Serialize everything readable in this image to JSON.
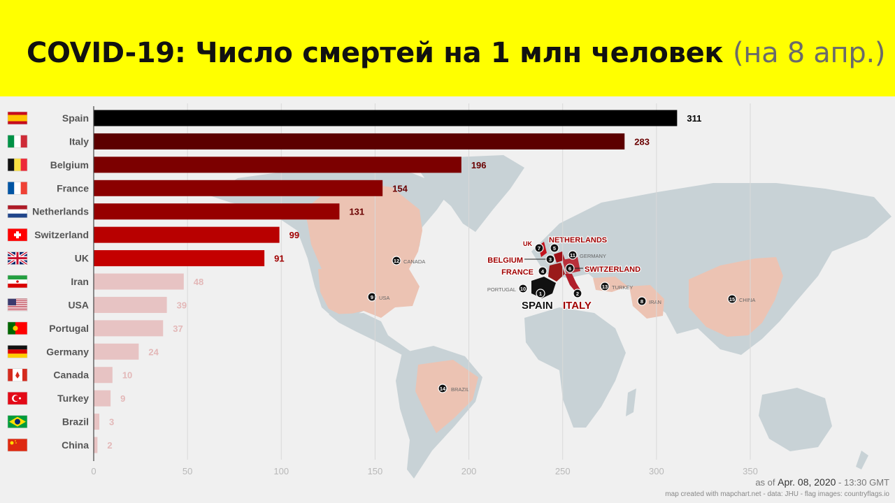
{
  "header": {
    "title": "COVID-19: Число смертей на 1 млн человек",
    "subtitle": "(на 8 апр.)"
  },
  "chart_data": {
    "type": "bar",
    "orientation": "horizontal",
    "categories": [
      "Spain",
      "Italy",
      "Belgium",
      "France",
      "Netherlands",
      "Switzerland",
      "UK",
      "Iran",
      "USA",
      "Portugal",
      "Germany",
      "Canada",
      "Turkey",
      "Brazil",
      "China"
    ],
    "values": [
      311,
      283,
      196,
      154,
      131,
      99,
      91,
      48,
      39,
      37,
      24,
      10,
      9,
      3,
      2
    ],
    "bar_colors": [
      "#000000",
      "#5c0000",
      "#7c0000",
      "#8a0000",
      "#960000",
      "#b80000",
      "#c40000",
      "#e7c3c3",
      "#e7c3c3",
      "#e7c3c3",
      "#e7c3c3",
      "#e7c3c3",
      "#e7c3c3",
      "#e7c3c3",
      "#e7c3c3"
    ],
    "label_colors": [
      "#000000",
      "#6a0000",
      "#6a0000",
      "#6a0000",
      "#6a0000",
      "#a00000",
      "#a00000",
      "#e3b8b8",
      "#e3b8b8",
      "#e3b8b8",
      "#e3b8b8",
      "#e3b8b8",
      "#e3b8b8",
      "#e3b8b8",
      "#e3b8b8"
    ],
    "xlim": [
      0,
      350
    ],
    "xticks": [
      0,
      50,
      100,
      150,
      200,
      250,
      300,
      350
    ],
    "grid": true,
    "flags": [
      "spain-flag",
      "italy-flag",
      "belgium-flag",
      "france-flag",
      "netherlands-flag",
      "switzerland-flag",
      "uk-flag",
      "iran-flag",
      "usa-flag",
      "portugal-flag",
      "germany-flag",
      "canada-flag",
      "turkey-flag",
      "brazil-flag",
      "china-flag"
    ]
  },
  "map": {
    "markers": [
      {
        "rank": "1",
        "label": "SPAIN"
      },
      {
        "rank": "2",
        "label": "ITALY"
      },
      {
        "rank": "3",
        "label": "BELGIUM"
      },
      {
        "rank": "4",
        "label": "FRANCE"
      },
      {
        "rank": "5",
        "label": "NETHERLANDS"
      },
      {
        "rank": "6",
        "label": "SWITZERLAND"
      },
      {
        "rank": "7",
        "label": "UK"
      },
      {
        "rank": "8",
        "label": "IRAN"
      },
      {
        "rank": "9",
        "label": "USA"
      },
      {
        "rank": "10",
        "label": "PORTUGAL"
      },
      {
        "rank": "11",
        "label": "GERMANY"
      },
      {
        "rank": "12",
        "label": "CANADA"
      },
      {
        "rank": "13",
        "label": "TURKEY"
      },
      {
        "rank": "14",
        "label": "BRAZIL"
      },
      {
        "rank": "15",
        "label": "CHINA"
      }
    ]
  },
  "footer": {
    "asof_prefix": "as of ",
    "asof_date": "Apr. 08, 2020",
    "asof_time": " - 13:30 GMT",
    "credit": "map created with mapchart.net - data: JHU - flag images: countryflags.io"
  },
  "colors": {
    "header_bg": "#ffff00",
    "land": "#c8d2d6",
    "land_highlight": "#ecc3b3",
    "europe_red": "#c2141e"
  }
}
